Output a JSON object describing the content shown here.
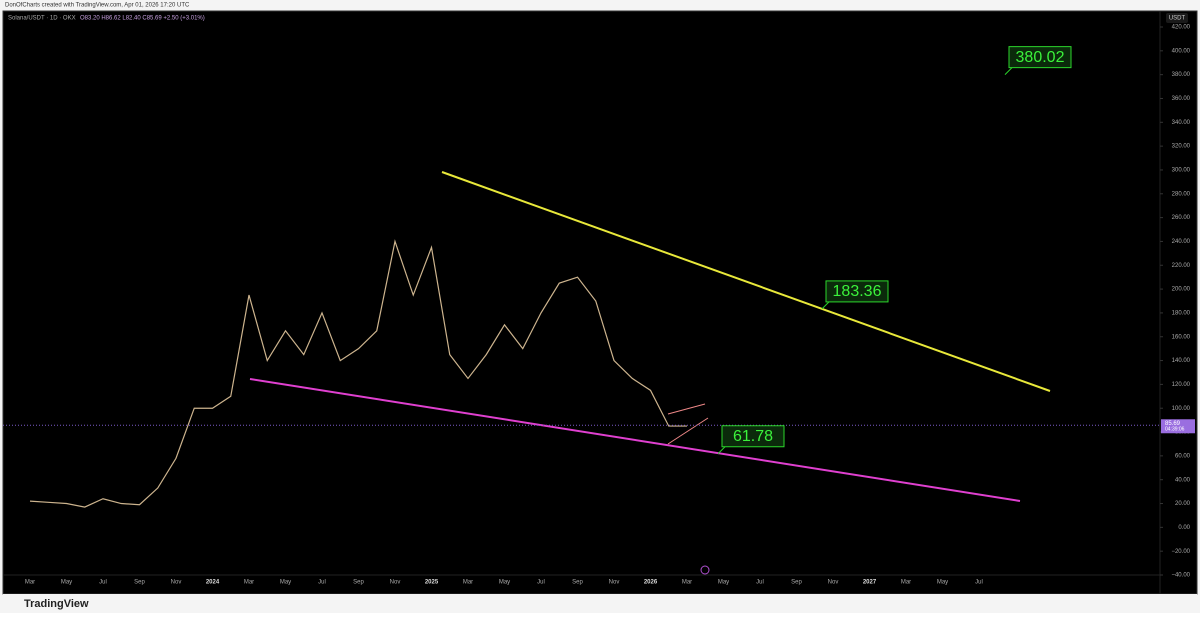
{
  "header": {
    "credit": "DonOfCharts created with TradingView.com, Apr 01, 2026 17:20 UTC"
  },
  "chart_data": {
    "type": "line",
    "symbol": "Solana/USDT · 1D · OKX",
    "ohlc": "O83.20 H86.62 L82.40 C85.69 +2.50 (+3.01%)",
    "currency": "USDT",
    "last_price": 85.69,
    "countdown": "04:39:06",
    "categories": [
      "Mar",
      null,
      "May",
      null,
      "Jul",
      null,
      "Sep",
      null,
      "Nov",
      null,
      "2024",
      null,
      "Mar",
      null,
      "May",
      null,
      "Jul",
      null,
      "Sep",
      null,
      "Nov",
      null,
      "2025",
      null,
      "Mar",
      null,
      "May",
      null,
      "Jul",
      null,
      "Sep",
      null,
      "Nov",
      null,
      "2026",
      null,
      "Mar",
      null,
      "May",
      null,
      "Jul",
      null,
      "Sep",
      null,
      "Nov",
      null,
      "2027",
      null,
      "Mar",
      null,
      "May",
      null,
      "Jul",
      null
    ],
    "series": [
      {
        "name": "Solana/USDT",
        "color": "#cdb48e",
        "values": [
          22,
          21,
          20,
          17,
          24,
          20,
          19,
          33,
          58,
          100,
          100,
          110,
          195,
          140,
          165,
          145,
          180,
          140,
          150,
          165,
          240,
          195,
          235,
          145,
          125,
          145,
          170,
          150,
          180,
          205,
          210,
          190,
          140,
          125,
          115,
          85,
          85,
          null,
          null,
          null,
          null,
          null,
          null,
          null,
          null,
          null,
          null,
          null,
          null,
          null,
          null,
          null,
          null,
          null
        ]
      }
    ],
    "annotations": [
      380.02,
      183.36,
      61.78
    ],
    "ylim": [
      -40,
      420
    ],
    "yticks": [
      {
        "value": 420,
        "label": "420.00"
      },
      {
        "value": 400,
        "label": "400.00"
      },
      {
        "value": 380,
        "label": "380.00"
      },
      {
        "value": 360,
        "label": "360.00"
      },
      {
        "value": 340,
        "label": "340.00"
      },
      {
        "value": 320,
        "label": "320.00"
      },
      {
        "value": 300,
        "label": "300.00"
      },
      {
        "value": 280,
        "label": "280.00"
      },
      {
        "value": 260,
        "label": "260.00"
      },
      {
        "value": 240,
        "label": "240.00"
      },
      {
        "value": 220,
        "label": "220.00"
      },
      {
        "value": 200,
        "label": "200.00"
      },
      {
        "value": 180,
        "label": "180.00"
      },
      {
        "value": 160,
        "label": "160.00"
      },
      {
        "value": 140,
        "label": "140.00"
      },
      {
        "value": 120,
        "label": "120.00"
      },
      {
        "value": 100,
        "label": "100.00"
      },
      {
        "value": 80,
        "label": "80.00"
      },
      {
        "value": 60,
        "label": "60.00"
      },
      {
        "value": 40,
        "label": "40.00"
      },
      {
        "value": 20,
        "label": "20.00"
      },
      {
        "value": 0,
        "label": "0.00"
      },
      {
        "value": -20,
        "label": "−20.00"
      },
      {
        "value": -40,
        "label": "−40.00"
      }
    ],
    "grid": false
  },
  "footer": {
    "brand": "TradingView"
  }
}
